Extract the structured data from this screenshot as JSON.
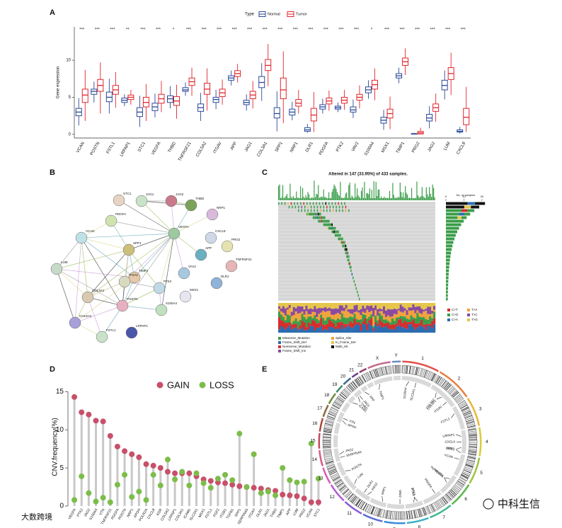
{
  "chart_data": [
    {
      "type": "boxplot",
      "panel": "A",
      "ylabel": "Gene expression",
      "legend_title": "Type",
      "categories": [
        "VCAN",
        "POSTN",
        "FSTL1",
        "LRPAP1",
        "STC1",
        "VEGFA",
        "THBD",
        "TNFRSF21",
        "COL5A2",
        "ITGAV",
        "APP",
        "JAG1",
        "COL3A1",
        "SPP1",
        "NRP1",
        "DLR1",
        "PDGFA",
        "PTK2",
        "VAV2",
        "S100A4",
        "MSX1",
        "TIMP1",
        "PRG2",
        "JAG2",
        "LUM",
        "CXCL8"
      ],
      "significance": [
        "***",
        "***",
        "***",
        "**",
        "***",
        "***",
        "*",
        "***",
        "***",
        "***",
        "***",
        "***",
        "***",
        "***",
        "***",
        "***",
        "***",
        "***",
        "***",
        "*",
        "***",
        "***",
        "***",
        "***",
        "***",
        "***"
      ],
      "series": [
        {
          "name": "Normal",
          "color": "#2b4a9b",
          "boxes": [
            [
              1.2,
              2.5,
              3,
              3.5,
              4.9
            ],
            [
              4.3,
              5.4,
              5.8,
              6.1,
              7.1
            ],
            [
              2.8,
              4.4,
              5,
              5.7,
              7.5
            ],
            [
              3.8,
              4.3,
              4.6,
              4.9,
              5.4
            ],
            [
              1,
              2.4,
              3,
              3.6,
              5.2
            ],
            [
              2.3,
              3.2,
              3.7,
              4.2,
              5.5
            ],
            [
              3.5,
              4.3,
              4.8,
              5.2,
              6.5
            ],
            [
              5.2,
              5.8,
              6,
              6.3,
              7
            ],
            [
              1.8,
              3.1,
              3.6,
              4.1,
              5.6
            ],
            [
              3.4,
              4.3,
              4.7,
              5,
              6
            ],
            [
              6.6,
              7.3,
              7.6,
              7.9,
              8.6
            ],
            [
              3.2,
              4,
              4.3,
              4.6,
              5.4
            ],
            [
              4.5,
              6.3,
              7,
              7.8,
              9.6
            ],
            [
              0.4,
              2.2,
              2.8,
              3.6,
              5.8
            ],
            [
              1.9,
              2.6,
              3,
              3.4,
              4.4
            ],
            [
              0.2,
              0.4,
              0.6,
              0.9,
              1.4
            ],
            [
              2.8,
              3.4,
              3.7,
              4,
              4.8
            ],
            [
              3,
              3.4,
              3.6,
              3.8,
              4.3
            ],
            [
              2.2,
              3,
              3.3,
              3.7,
              4.7
            ],
            [
              4.8,
              5.6,
              6,
              6.4,
              7.3
            ],
            [
              0.6,
              1.5,
              1.9,
              2.3,
              3.3
            ],
            [
              6.9,
              7.6,
              7.9,
              8.2,
              9
            ],
            [
              0,
              0.02,
              0.05,
              0.1,
              0.2
            ],
            [
              0.8,
              1.8,
              2.2,
              2.7,
              3.8
            ],
            [
              4.7,
              6,
              6.6,
              7.3,
              8.6
            ],
            [
              0.1,
              0.3,
              0.4,
              0.6,
              1
            ]
          ]
        },
        {
          "name": "Tumor",
          "color": "#e0262c",
          "boxes": [
            [
              1.8,
              4.3,
              5.3,
              6.1,
              8.7
            ],
            [
              2.8,
              5.8,
              6.6,
              7.4,
              9.7
            ],
            [
              3.6,
              5.4,
              6,
              6.6,
              8.4
            ],
            [
              4,
              4.7,
              5,
              5.3,
              6
            ],
            [
              1.8,
              3.7,
              4.3,
              5,
              6.8
            ],
            [
              3,
              4.2,
              4.8,
              5.4,
              7.2
            ],
            [
              2.1,
              3.9,
              4.5,
              5.1,
              6.7
            ],
            [
              5.2,
              6.6,
              7.1,
              7.6,
              9
            ],
            [
              3.2,
              5.4,
              6.1,
              6.9,
              8.9
            ],
            [
              4,
              5.1,
              5.6,
              6.1,
              7.4
            ],
            [
              7,
              7.8,
              8.2,
              8.6,
              9.5
            ],
            [
              3.5,
              4.8,
              5.3,
              5.8,
              7.2
            ],
            [
              6.5,
              8.6,
              9.3,
              10.1,
              12.2
            ],
            [
              1.5,
              4.8,
              6,
              7.6,
              11.2
            ],
            [
              2.8,
              3.8,
              4.2,
              4.7,
              6
            ],
            [
              0.3,
              1.8,
              2.6,
              3.5,
              5.7
            ],
            [
              3.2,
              4.1,
              4.5,
              4.9,
              5.9
            ],
            [
              3.3,
              4.2,
              4.6,
              5,
              6
            ],
            [
              3.5,
              4.6,
              5,
              5.4,
              6.6
            ],
            [
              4.6,
              6.1,
              6.7,
              7.3,
              8.9
            ],
            [
              0.7,
              2.2,
              2.8,
              3.4,
              5.1
            ],
            [
              8,
              9.3,
              9.8,
              10.3,
              11.6
            ],
            [
              0,
              0.05,
              0.2,
              0.4,
              0.9
            ],
            [
              1.7,
              3.1,
              3.6,
              4.1,
              5.5
            ],
            [
              5.3,
              7.4,
              8.2,
              9,
              11
            ],
            [
              0.3,
              1.3,
              2.3,
              3.5,
              6.4
            ]
          ]
        }
      ],
      "ylim": [
        -0.5,
        14.5
      ],
      "yticks": [
        0,
        5,
        10
      ]
    },
    {
      "type": "lollipop",
      "panel": "D",
      "ylabel": "CNV.frequency(%)",
      "legend_position": "top",
      "categories": [
        "VEGFA",
        "PTK2",
        "JAG2",
        "S100A4",
        "VTN",
        "TNFRSF21",
        "PDGFA",
        "POSTN",
        "NRP1",
        "APOH",
        "POLR2A",
        "CXCL8",
        "KDR",
        "COL5A2",
        "LRPAP1",
        "COL3A1",
        "ICAM1",
        "SLC2A1",
        "MSX1",
        "FSTL1",
        "FGF2",
        "ITGB1",
        "TGFB1",
        "SPP1",
        "SERPINA5",
        "ITGAV",
        "DLR1",
        "JAG1",
        "THBD",
        "TIMP1",
        "APP",
        "LUM",
        "PRG2",
        "VCAN",
        "STC1"
      ],
      "series": [
        {
          "name": "GAIN",
          "color": "#c8506a",
          "values": [
            14.3,
            12.3,
            12,
            11.2,
            11.1,
            9.2,
            7.8,
            7.2,
            6.8,
            6.4,
            5.5,
            5.3,
            5,
            4.5,
            4.3,
            4.3,
            4.3,
            3.9,
            3.5,
            3.3,
            3.1,
            3,
            2.8,
            2.6,
            2.5,
            2.4,
            2.3,
            2.1,
            2,
            1.5,
            1.4,
            1.3,
            1,
            0.5,
            0.5
          ]
        },
        {
          "name": "LOSS",
          "color": "#7cbd4a",
          "values": [
            0.8,
            3.9,
            1.7,
            0.6,
            1.1,
            0.5,
            2.8,
            4.1,
            1.2,
            1.9,
            0.8,
            4.1,
            2.7,
            6.1,
            3.5,
            4.5,
            2.7,
            4.3,
            3,
            2.4,
            3.6,
            4.1,
            3.4,
            9.5,
            2.5,
            6.8,
            1.7,
            1.9,
            1.4,
            5,
            3.4,
            3.1,
            3.2,
            8.2,
            3.6
          ]
        }
      ],
      "ylim": [
        0,
        15.5
      ],
      "yticks": [
        0,
        5,
        10,
        15
      ]
    }
  ],
  "network": {
    "panel": "B",
    "nodes": [
      "STC1",
      "JAG1",
      "JAG2",
      "THBD",
      "NRP1",
      "PDGFA",
      "VCAN",
      "VEGFA",
      "CXCL8",
      "PRG2",
      "SPP1",
      "APP",
      "TNFRSF21",
      "LUM",
      "VAV2",
      "TIMP1",
      "ITGAV",
      "DLR1",
      "COL3A1",
      "PTK2",
      "MSX1",
      "POSTN",
      "COL5A2",
      "S100A4",
      "FSTL1",
      "LRPAP1"
    ]
  },
  "oncoplot": {
    "panel": "C",
    "title": "Altered in 147 (33.95%) of 433 samples.",
    "count_label": "No. of samples",
    "count_lim": [
      0,
      22
    ],
    "count_ticks": [
      0,
      10,
      20
    ],
    "variant_legend": [
      {
        "name": "Missense_Mutation",
        "color": "#3a9d48"
      },
      {
        "name": "Splice_Site",
        "color": "#f2a23b"
      },
      {
        "name": "Frame_Shift_Del",
        "color": "#2b6cb0"
      },
      {
        "name": "In_Frame_Del",
        "color": "#e5c64a"
      },
      {
        "name": "Nonsense_Mutation",
        "color": "#d62d2d"
      },
      {
        "name": "Multi_Hit",
        "color": "#000000"
      },
      {
        "name": "Frame_Shift_Ins",
        "color": "#8b4aa0"
      }
    ],
    "titv_legend": [
      {
        "name": "C>T",
        "color": "#d62d2d"
      },
      {
        "name": "T>A",
        "color": "#f2a23b"
      },
      {
        "name": "C>G",
        "color": "#3a9d48"
      },
      {
        "name": "T>C",
        "color": "#8b4aa0"
      },
      {
        "name": "C>A",
        "color": "#2b6cb0"
      },
      {
        "name": "T>G",
        "color": "#e5c64a"
      }
    ]
  },
  "circos": {
    "panel": "E",
    "chromosomes": [
      "1",
      "2",
      "3",
      "4",
      "5",
      "6",
      "7",
      "8",
      "9",
      "10",
      "11",
      "12",
      "13",
      "14",
      "15",
      "16",
      "17",
      "18",
      "19",
      "20",
      "21",
      "22",
      "X",
      "Y"
    ],
    "genes": [
      {
        "name": "S100A4",
        "chrom": "1"
      },
      {
        "name": "SLC2A1",
        "chrom": "1"
      },
      {
        "name": "COL5A2",
        "chrom": "2"
      },
      {
        "name": "COL3A1",
        "chrom": "2"
      },
      {
        "name": "ITGAV",
        "chrom": "2"
      },
      {
        "name": "FSTL1",
        "chrom": "3"
      },
      {
        "name": "LRPAP1",
        "chrom": "4"
      },
      {
        "name": "CXCL8",
        "chrom": "4"
      },
      {
        "name": "SPP1",
        "chrom": "4"
      },
      {
        "name": "MSX1",
        "chrom": "4"
      },
      {
        "name": "VCAN",
        "chrom": "5"
      },
      {
        "name": "TNFRSF21",
        "chrom": "6"
      },
      {
        "name": "VEGFA",
        "chrom": "6"
      },
      {
        "name": "PDGFA",
        "chrom": "7"
      },
      {
        "name": "PTK2",
        "chrom": "8"
      },
      {
        "name": "STC1",
        "chrom": "8"
      },
      {
        "name": "VAV2",
        "chrom": "9"
      },
      {
        "name": "NRP1",
        "chrom": "10"
      },
      {
        "name": "PRG2",
        "chrom": "11"
      },
      {
        "name": "DLR1",
        "chrom": "11"
      },
      {
        "name": "LUM",
        "chrom": "12"
      },
      {
        "name": "POSTN",
        "chrom": "13"
      },
      {
        "name": "SERPINA5",
        "chrom": "14"
      },
      {
        "name": "JAG2",
        "chrom": "14"
      },
      {
        "name": "APOH",
        "chrom": "17"
      },
      {
        "name": "VTN",
        "chrom": "17"
      },
      {
        "name": "ICAM1",
        "chrom": "19"
      },
      {
        "name": "THBD",
        "chrom": "20"
      },
      {
        "name": "JAG1",
        "chrom": "20"
      },
      {
        "name": "APP",
        "chrom": "21"
      },
      {
        "name": "TIMP1",
        "chrom": "X"
      }
    ]
  },
  "watermarks": [
    "大数跨境",
    "中科生信"
  ]
}
